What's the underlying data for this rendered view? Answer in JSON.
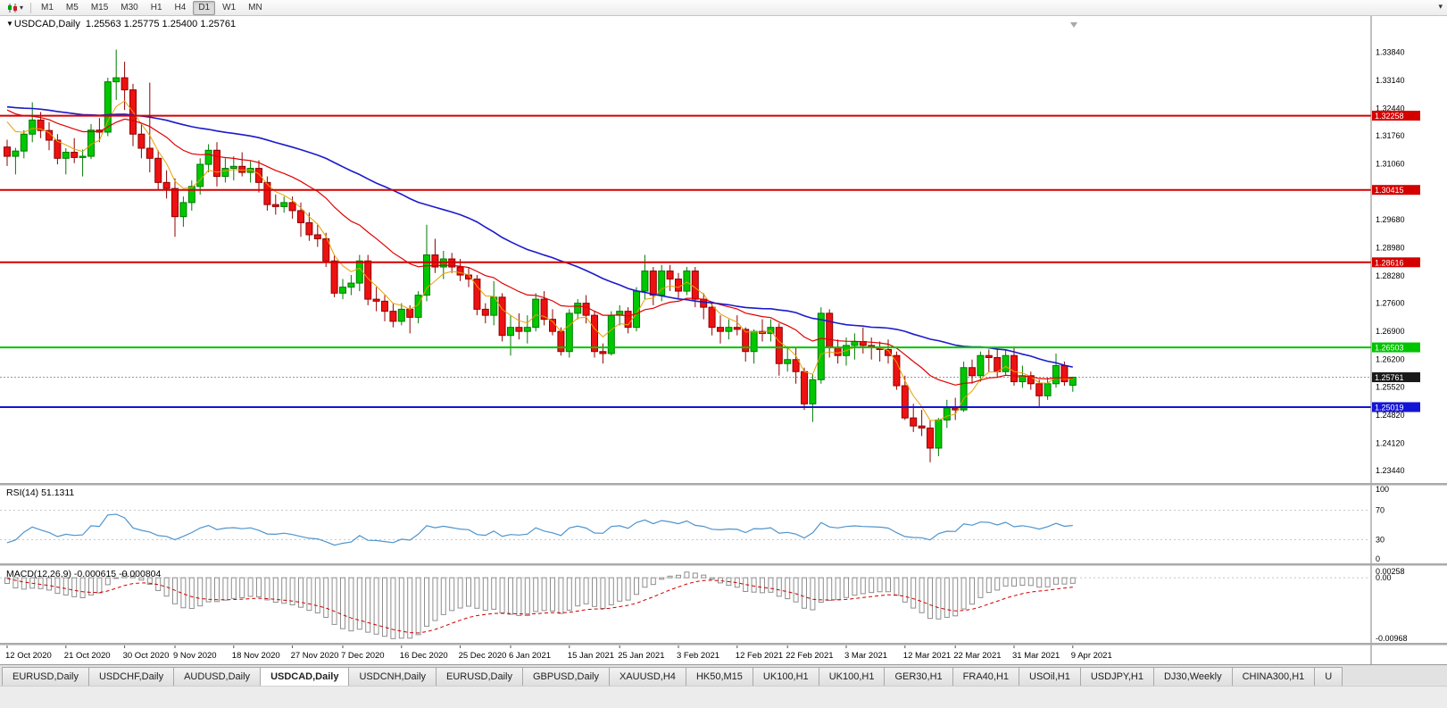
{
  "icons": {
    "marker": "▼",
    "dropdown": "▾"
  },
  "toolbar": {
    "timeframes": [
      "M1",
      "M5",
      "M15",
      "M30",
      "H1",
      "H4",
      "D1",
      "W1",
      "MN"
    ],
    "active_timeframe": "D1"
  },
  "chart": {
    "symbol_label": "USDCAD,Daily",
    "ohlc_label": "1.25563 1.25775 1.25400 1.25761",
    "candle_colors": {
      "up": "#00c800",
      "up_border": "#007a00",
      "down": "#ee1111",
      "down_border": "#8f0000"
    }
  },
  "indicators": {
    "rsi": {
      "label": "RSI(14) 51.1311",
      "period": 14,
      "levels": [
        70,
        30
      ],
      "scale_labels": [
        [
          "100",
          100
        ],
        [
          "70",
          70
        ],
        [
          "30",
          30
        ],
        [
          "0",
          0
        ]
      ],
      "color": "#4f94cd"
    },
    "macd": {
      "label": "MACD(12,26,9) -0.000615 -0.000804",
      "fast": 12,
      "slow": 26,
      "signal": 9,
      "scale_max_label": "0.00258",
      "scale_zero_label": "0.00",
      "scale_min_label": "-0.00968",
      "histogram_color": "#8e8e8e",
      "signal_color": "#cc0000"
    }
  },
  "chart_data": {
    "type": "candlestick",
    "symbol": "USDCAD",
    "timeframe": "Daily",
    "price_axis": {
      "range": [
        1.232,
        1.346
      ],
      "ticks": [
        "1.33840",
        "1.33140",
        "1.32440",
        "1.31760",
        "1.31060",
        "1.30380",
        "1.29680",
        "1.28980",
        "1.28280",
        "1.27600",
        "1.26900",
        "1.26200",
        "1.25520",
        "1.24820",
        "1.24120",
        "1.23440"
      ]
    },
    "levels": [
      {
        "price": 1.32258,
        "label": "1.32258",
        "color": "#d40000"
      },
      {
        "price": 1.30415,
        "label": "1.30415",
        "color": "#d40000"
      },
      {
        "price": 1.28616,
        "label": "1.28616",
        "color": "#d40000"
      },
      {
        "price": 1.26503,
        "label": "1.26503",
        "color": "#00c400"
      },
      {
        "price": 1.25019,
        "label": "1.25019",
        "color": "#1414d4"
      }
    ],
    "current_price": {
      "price": 1.25761,
      "label": "1.25761"
    },
    "moving_averages": [
      {
        "name": "ma-fast",
        "type": "ema",
        "period": 5,
        "color": "#e8a000",
        "width": 1
      },
      {
        "name": "ma-mid",
        "type": "ema",
        "period": 20,
        "color": "#e00000",
        "width": 1.2
      },
      {
        "name": "ma-slow",
        "type": "sma",
        "period": 45,
        "color": "#1a1acc",
        "width": 1.6
      }
    ],
    "ma_seed": {
      "base": 1.325,
      "amp": 0.0025,
      "length": 60
    },
    "x_labels": [
      [
        "12 Oct 2020",
        0
      ],
      [
        "21 Oct 2020",
        7
      ],
      [
        "30 Oct 2020",
        14
      ],
      [
        "9 Nov 2020",
        20
      ],
      [
        "18 Nov 2020",
        27
      ],
      [
        "27 Nov 2020",
        34
      ],
      [
        "7 Dec 2020",
        40
      ],
      [
        "16 Dec 2020",
        47
      ],
      [
        "25 Dec 2020",
        54
      ],
      [
        "6 Jan 2021",
        60
      ],
      [
        "15 Jan 2021",
        67
      ],
      [
        "25 Jan 2021",
        73
      ],
      [
        "3 Feb 2021",
        80
      ],
      [
        "12 Feb 2021",
        87
      ],
      [
        "22 Feb 2021",
        93
      ],
      [
        "3 Mar 2021",
        100
      ],
      [
        "12 Mar 2021",
        107
      ],
      [
        "22 Mar 2021",
        113
      ],
      [
        "31 Mar 2021",
        120
      ],
      [
        "9 Apr 2021",
        127
      ]
    ],
    "ohlc": [
      [
        1.3148,
        1.3166,
        1.3101,
        1.3125
      ],
      [
        1.3125,
        1.3146,
        1.308,
        1.3138
      ],
      [
        1.3138,
        1.319,
        1.312,
        1.318
      ],
      [
        1.318,
        1.3259,
        1.316,
        1.3215
      ],
      [
        1.3215,
        1.3235,
        1.317,
        1.3189
      ],
      [
        1.3189,
        1.321,
        1.314,
        1.3165
      ],
      [
        1.3165,
        1.318,
        1.3105,
        1.312
      ],
      [
        1.312,
        1.3145,
        1.308,
        1.3135
      ],
      [
        1.3135,
        1.317,
        1.3108,
        1.3122
      ],
      [
        1.3122,
        1.3142,
        1.3075,
        1.3125
      ],
      [
        1.3125,
        1.3205,
        1.3118,
        1.319
      ],
      [
        1.319,
        1.322,
        1.316,
        1.3185
      ],
      [
        1.3185,
        1.332,
        1.3175,
        1.331
      ],
      [
        1.331,
        1.339,
        1.3265,
        1.332
      ],
      [
        1.332,
        1.336,
        1.324,
        1.329
      ],
      [
        1.329,
        1.3305,
        1.315,
        1.318
      ],
      [
        1.318,
        1.3205,
        1.312,
        1.3145
      ],
      [
        1.3145,
        1.3308,
        1.3085,
        1.312
      ],
      [
        1.312,
        1.314,
        1.304,
        1.306
      ],
      [
        1.306,
        1.309,
        1.302,
        1.3045
      ],
      [
        1.3045,
        1.307,
        1.2925,
        1.2975
      ],
      [
        1.2975,
        1.3025,
        1.295,
        1.301
      ],
      [
        1.301,
        1.3065,
        1.299,
        1.305
      ],
      [
        1.305,
        1.312,
        1.303,
        1.3105
      ],
      [
        1.3105,
        1.3155,
        1.3085,
        1.314
      ],
      [
        1.314,
        1.316,
        1.305,
        1.3075
      ],
      [
        1.3075,
        1.312,
        1.306,
        1.3095
      ],
      [
        1.3095,
        1.3125,
        1.3065,
        1.31
      ],
      [
        1.31,
        1.3135,
        1.3075,
        1.3085
      ],
      [
        1.3085,
        1.3115,
        1.306,
        1.3095
      ],
      [
        1.3095,
        1.3115,
        1.3035,
        1.306
      ],
      [
        1.306,
        1.3075,
        1.299,
        1.3005
      ],
      [
        1.3005,
        1.303,
        1.298,
        1.3
      ],
      [
        1.3,
        1.3025,
        1.2985,
        1.301
      ],
      [
        1.301,
        1.3025,
        1.297,
        1.299
      ],
      [
        1.299,
        1.301,
        1.2925,
        1.296
      ],
      [
        1.296,
        1.2985,
        1.2915,
        1.293
      ],
      [
        1.293,
        1.2955,
        1.29,
        1.292
      ],
      [
        1.292,
        1.2935,
        1.285,
        1.2865
      ],
      [
        1.2865,
        1.288,
        1.2775,
        1.2785
      ],
      [
        1.2785,
        1.282,
        1.277,
        1.28
      ],
      [
        1.28,
        1.283,
        1.278,
        1.281
      ],
      [
        1.281,
        1.288,
        1.279,
        1.2865
      ],
      [
        1.2865,
        1.288,
        1.2755,
        1.277
      ],
      [
        1.277,
        1.28,
        1.274,
        1.2765
      ],
      [
        1.2765,
        1.278,
        1.2715,
        1.274
      ],
      [
        1.274,
        1.276,
        1.27,
        1.2715
      ],
      [
        1.2715,
        1.276,
        1.2705,
        1.2745
      ],
      [
        1.2745,
        1.2755,
        1.2685,
        1.2725
      ],
      [
        1.2725,
        1.279,
        1.271,
        1.278
      ],
      [
        1.278,
        1.2955,
        1.2765,
        1.288
      ],
      [
        1.288,
        1.292,
        1.2835,
        1.285
      ],
      [
        1.285,
        1.289,
        1.282,
        1.287
      ],
      [
        1.287,
        1.2885,
        1.2835,
        1.285
      ],
      [
        1.285,
        1.287,
        1.2815,
        1.283
      ],
      [
        1.283,
        1.285,
        1.28,
        1.282
      ],
      [
        1.282,
        1.283,
        1.273,
        1.2745
      ],
      [
        1.2745,
        1.276,
        1.271,
        1.273
      ],
      [
        1.273,
        1.2815,
        1.2705,
        1.2775
      ],
      [
        1.2775,
        1.2785,
        1.2665,
        1.268
      ],
      [
        1.268,
        1.273,
        1.263,
        1.27
      ],
      [
        1.27,
        1.2735,
        1.267,
        1.269
      ],
      [
        1.269,
        1.273,
        1.266,
        1.27
      ],
      [
        1.27,
        1.2785,
        1.269,
        1.277
      ],
      [
        1.277,
        1.279,
        1.2705,
        1.272
      ],
      [
        1.272,
        1.2745,
        1.268,
        1.269
      ],
      [
        1.269,
        1.27,
        1.263,
        1.264
      ],
      [
        1.264,
        1.2745,
        1.2625,
        1.2735
      ],
      [
        1.2735,
        1.277,
        1.272,
        1.276
      ],
      [
        1.276,
        1.278,
        1.271,
        1.273
      ],
      [
        1.273,
        1.274,
        1.2625,
        1.264
      ],
      [
        1.264,
        1.266,
        1.261,
        1.2635
      ],
      [
        1.2635,
        1.274,
        1.263,
        1.273
      ],
      [
        1.273,
        1.2755,
        1.2705,
        1.274
      ],
      [
        1.274,
        1.275,
        1.2685,
        1.27
      ],
      [
        1.27,
        1.28,
        1.269,
        1.279
      ],
      [
        1.279,
        1.288,
        1.277,
        1.284
      ],
      [
        1.284,
        1.285,
        1.2755,
        1.278
      ],
      [
        1.278,
        1.2855,
        1.2765,
        1.284
      ],
      [
        1.284,
        1.2855,
        1.279,
        1.282
      ],
      [
        1.282,
        1.2835,
        1.277,
        1.279
      ],
      [
        1.279,
        1.285,
        1.278,
        1.284
      ],
      [
        1.284,
        1.285,
        1.275,
        1.277
      ],
      [
        1.277,
        1.2785,
        1.272,
        1.275
      ],
      [
        1.275,
        1.276,
        1.268,
        1.27
      ],
      [
        1.27,
        1.273,
        1.266,
        1.269
      ],
      [
        1.269,
        1.272,
        1.267,
        1.27
      ],
      [
        1.27,
        1.273,
        1.268,
        1.2695
      ],
      [
        1.2695,
        1.27,
        1.2615,
        1.264
      ],
      [
        1.264,
        1.2695,
        1.261,
        1.269
      ],
      [
        1.269,
        1.272,
        1.2665,
        1.2685
      ],
      [
        1.2685,
        1.272,
        1.2665,
        1.27
      ],
      [
        1.27,
        1.271,
        1.258,
        1.261
      ],
      [
        1.261,
        1.265,
        1.259,
        1.262
      ],
      [
        1.262,
        1.265,
        1.256,
        1.259
      ],
      [
        1.259,
        1.26,
        1.2495,
        1.251
      ],
      [
        1.251,
        1.2585,
        1.2465,
        1.257
      ],
      [
        1.257,
        1.275,
        1.256,
        1.2735
      ],
      [
        1.2735,
        1.2745,
        1.2625,
        1.265
      ],
      [
        1.265,
        1.267,
        1.261,
        1.263
      ],
      [
        1.263,
        1.2675,
        1.2605,
        1.2655
      ],
      [
        1.2655,
        1.2685,
        1.262,
        1.2665
      ],
      [
        1.2665,
        1.27,
        1.2635,
        1.2655
      ],
      [
        1.2655,
        1.2675,
        1.262,
        1.265
      ],
      [
        1.265,
        1.2665,
        1.2615,
        1.2645
      ],
      [
        1.2645,
        1.267,
        1.261,
        1.263
      ],
      [
        1.263,
        1.264,
        1.2545,
        1.2555
      ],
      [
        1.2555,
        1.258,
        1.247,
        1.2475
      ],
      [
        1.2475,
        1.251,
        1.244,
        1.2455
      ],
      [
        1.2455,
        1.2495,
        1.243,
        1.245
      ],
      [
        1.245,
        1.247,
        1.2365,
        1.24
      ],
      [
        1.24,
        1.2475,
        1.238,
        1.247
      ],
      [
        1.247,
        1.252,
        1.245,
        1.25
      ],
      [
        1.25,
        1.2525,
        1.247,
        1.2495
      ],
      [
        1.2495,
        1.2615,
        1.249,
        1.26
      ],
      [
        1.26,
        1.262,
        1.256,
        1.258
      ],
      [
        1.258,
        1.264,
        1.2565,
        1.263
      ],
      [
        1.263,
        1.2645,
        1.259,
        1.2625
      ],
      [
        1.2625,
        1.265,
        1.2575,
        1.259
      ],
      [
        1.259,
        1.2645,
        1.258,
        1.263
      ],
      [
        1.263,
        1.265,
        1.2555,
        1.2565
      ],
      [
        1.2565,
        1.2605,
        1.255,
        1.258
      ],
      [
        1.258,
        1.259,
        1.2545,
        1.256
      ],
      [
        1.256,
        1.257,
        1.25,
        1.253
      ],
      [
        1.253,
        1.2575,
        1.252,
        1.256
      ],
      [
        1.256,
        1.2635,
        1.255,
        1.2605
      ],
      [
        1.2605,
        1.2615,
        1.2555,
        1.2565
      ],
      [
        1.25563,
        1.25775,
        1.254,
        1.25761
      ]
    ]
  },
  "tabs": [
    {
      "label": "EURUSD,Daily"
    },
    {
      "label": "USDCHF,Daily"
    },
    {
      "label": "AUDUSD,Daily"
    },
    {
      "label": "USDCAD,Daily",
      "active": true
    },
    {
      "label": "USDCNH,Daily"
    },
    {
      "label": "EURUSD,Daily"
    },
    {
      "label": "GBPUSD,Daily"
    },
    {
      "label": "XAUUSD,H4"
    },
    {
      "label": "HK50,M15"
    },
    {
      "label": "UK100,H1"
    },
    {
      "label": "UK100,H1"
    },
    {
      "label": "GER30,H1"
    },
    {
      "label": "FRA40,H1"
    },
    {
      "label": "USOil,H1"
    },
    {
      "label": "USDJPY,H1"
    },
    {
      "label": "DJ30,Weekly"
    },
    {
      "label": "CHINA300,H1"
    },
    {
      "label": "U"
    }
  ]
}
